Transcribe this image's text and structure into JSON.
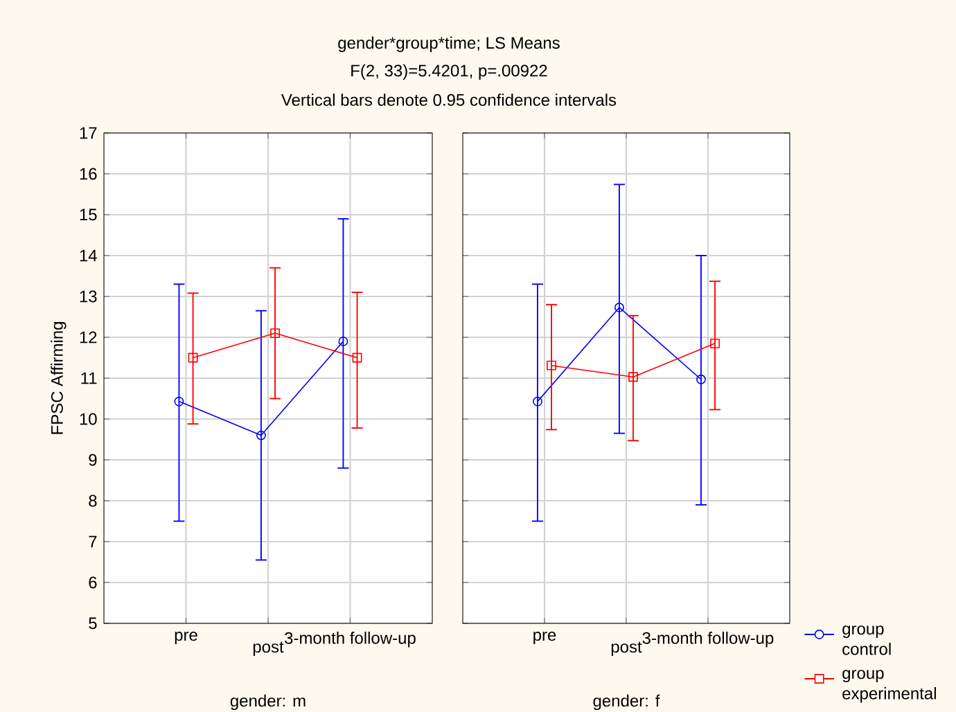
{
  "chart_data": [
    {
      "type": "line",
      "title": "gender*group*time; LS Means",
      "subtitle": "F(2, 33)=5.4201, p=.00922",
      "annotations": [
        "Vertical bars denote 0.95 confidence intervals"
      ],
      "xlabel": "gender: m",
      "ylabel": "FPSC Affirming",
      "categories": [
        "pre",
        "post",
        "3-month follow-up"
      ],
      "ylim": [
        5,
        17
      ],
      "yticks": [
        5,
        6,
        7,
        8,
        9,
        10,
        11,
        12,
        13,
        14,
        15,
        16,
        17
      ],
      "grid": true,
      "legend": false,
      "line_style": "solid",
      "series": [
        {
          "color": "#0000ff",
          "marker": "circle",
          "values": [
            10.43,
            9.6,
            11.9
          ],
          "errors": [
            [
              7.5,
              13.3
            ],
            [
              6.55,
              12.65
            ],
            [
              8.8,
              14.9
            ]
          ]
        },
        {
          "color": "#ff0000",
          "marker": "square",
          "values": [
            11.5,
            12.1,
            11.5
          ],
          "errors": [
            [
              9.88,
              13.08
            ],
            [
              10.5,
              13.7
            ],
            [
              9.78,
              13.1
            ]
          ]
        }
      ]
    },
    {
      "type": "line",
      "xlabel": "gender: f",
      "categories": [
        "pre",
        "post",
        "3-month follow-up"
      ],
      "ylim": [
        5,
        17
      ],
      "yticks": [
        5,
        6,
        7,
        8,
        9,
        10,
        11,
        12,
        13,
        14,
        15,
        16,
        17
      ],
      "tick_labels": "x",
      "grid": true,
      "legend": "bottom right",
      "line_style": "solid",
      "series": [
        {
          "name": "group control",
          "color": "#0000ff",
          "marker": "circle",
          "values": [
            10.43,
            12.73,
            10.97
          ],
          "errors": [
            [
              7.5,
              13.3
            ],
            [
              9.65,
              15.74
            ],
            [
              7.9,
              14.0
            ]
          ]
        },
        {
          "name": "group experimental",
          "color": "#ff0000",
          "marker": "square",
          "values": [
            11.31,
            11.03,
            11.85
          ],
          "errors": [
            [
              9.74,
              12.8
            ],
            [
              9.47,
              12.53
            ],
            [
              10.23,
              13.37
            ]
          ]
        }
      ]
    }
  ]
}
